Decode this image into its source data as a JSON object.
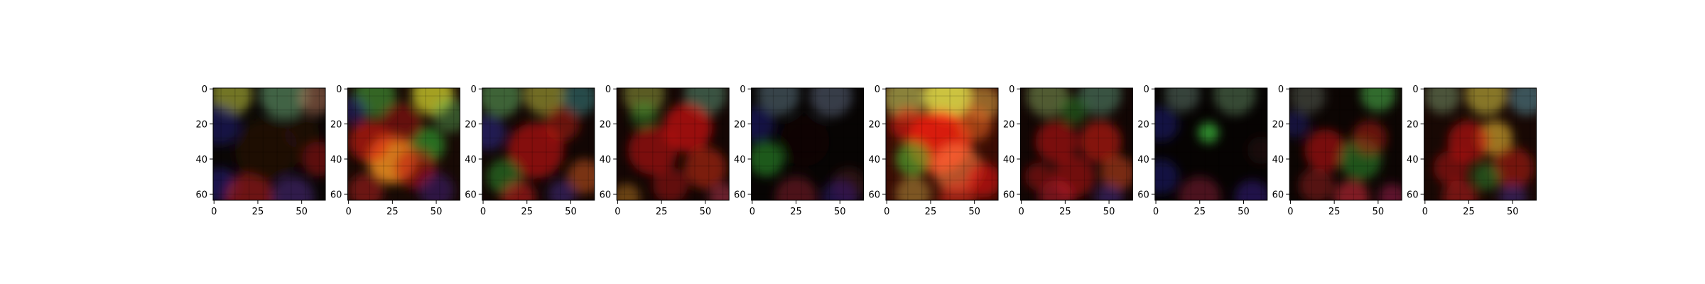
{
  "chart_data": {
    "type": "heatmap",
    "description_kind": "grid of 10 image subplots (generated RGB images)",
    "panel_count": 10,
    "image_size": [
      64,
      64
    ],
    "x_ticks": [
      0,
      25,
      50
    ],
    "y_ticks": [
      0,
      20,
      40,
      60
    ],
    "xlim": [
      -0.5,
      63.5
    ],
    "ylim": [
      63.5,
      -0.5
    ],
    "title": "",
    "xlabel": "",
    "ylabel": "",
    "grid": false,
    "panels": [
      {
        "base": "#0a0605",
        "blobs": [
          {
            "x": 10,
            "y": 3,
            "r": 12,
            "color": "#c8d040",
            "a": 0.55
          },
          {
            "x": 40,
            "y": 3,
            "r": 14,
            "color": "#6fae7a",
            "a": 0.55
          },
          {
            "x": 58,
            "y": 5,
            "r": 10,
            "color": "#c08060",
            "a": 0.5
          },
          {
            "x": 3,
            "y": 20,
            "r": 12,
            "color": "#202090",
            "a": 0.45
          },
          {
            "x": 3,
            "y": 55,
            "r": 10,
            "color": "#2a20a0",
            "a": 0.45
          },
          {
            "x": 60,
            "y": 40,
            "r": 10,
            "color": "#c01010",
            "a": 0.45
          },
          {
            "x": 20,
            "y": 62,
            "r": 14,
            "color": "#c02020",
            "a": 0.55
          },
          {
            "x": 45,
            "y": 62,
            "r": 12,
            "color": "#6030a0",
            "a": 0.45
          },
          {
            "x": 30,
            "y": 35,
            "r": 18,
            "color": "#301008",
            "a": 0.5
          },
          {
            "x": 50,
            "y": 25,
            "r": 10,
            "color": "#3a1a10",
            "a": 0.4
          }
        ]
      },
      {
        "base": "#180a05",
        "blobs": [
          {
            "x": 48,
            "y": 3,
            "r": 12,
            "color": "#e0e030",
            "a": 0.7
          },
          {
            "x": 15,
            "y": 4,
            "r": 12,
            "color": "#50c040",
            "a": 0.5
          },
          {
            "x": 25,
            "y": 40,
            "r": 14,
            "color": "#ff9a20",
            "a": 0.8
          },
          {
            "x": 12,
            "y": 30,
            "r": 12,
            "color": "#e02010",
            "a": 0.6
          },
          {
            "x": 45,
            "y": 32,
            "r": 10,
            "color": "#30b030",
            "a": 0.6
          },
          {
            "x": 38,
            "y": 45,
            "r": 12,
            "color": "#c01010",
            "a": 0.55
          },
          {
            "x": 30,
            "y": 20,
            "r": 12,
            "color": "#b01010",
            "a": 0.5
          },
          {
            "x": 58,
            "y": 15,
            "r": 10,
            "color": "#60c060",
            "a": 0.4
          },
          {
            "x": 10,
            "y": 58,
            "r": 10,
            "color": "#c02020",
            "a": 0.5
          },
          {
            "x": 50,
            "y": 58,
            "r": 10,
            "color": "#5020a0",
            "a": 0.4
          },
          {
            "x": 3,
            "y": 12,
            "r": 8,
            "color": "#2020a0",
            "a": 0.4
          }
        ]
      },
      {
        "base": "#120604",
        "blobs": [
          {
            "x": 10,
            "y": 4,
            "r": 12,
            "color": "#60b060",
            "a": 0.55
          },
          {
            "x": 35,
            "y": 3,
            "r": 12,
            "color": "#c0c040",
            "a": 0.55
          },
          {
            "x": 55,
            "y": 5,
            "r": 10,
            "color": "#40a0a0",
            "a": 0.45
          },
          {
            "x": 30,
            "y": 35,
            "r": 16,
            "color": "#d01010",
            "a": 0.6
          },
          {
            "x": 45,
            "y": 20,
            "r": 10,
            "color": "#c02010",
            "a": 0.5
          },
          {
            "x": 12,
            "y": 50,
            "r": 10,
            "color": "#30a030",
            "a": 0.5
          },
          {
            "x": 58,
            "y": 50,
            "r": 10,
            "color": "#e06020",
            "a": 0.5
          },
          {
            "x": 20,
            "y": 62,
            "r": 10,
            "color": "#d02020",
            "a": 0.55
          },
          {
            "x": 3,
            "y": 25,
            "r": 10,
            "color": "#3030b0",
            "a": 0.45
          },
          {
            "x": 45,
            "y": 60,
            "r": 8,
            "color": "#5030a0",
            "a": 0.45
          }
        ]
      },
      {
        "base": "#140604",
        "blobs": [
          {
            "x": 15,
            "y": 3,
            "r": 12,
            "color": "#a0b040",
            "a": 0.5
          },
          {
            "x": 50,
            "y": 3,
            "r": 12,
            "color": "#60a080",
            "a": 0.5
          },
          {
            "x": 40,
            "y": 22,
            "r": 14,
            "color": "#e01010",
            "a": 0.65
          },
          {
            "x": 20,
            "y": 35,
            "r": 14,
            "color": "#c01010",
            "a": 0.6
          },
          {
            "x": 50,
            "y": 45,
            "r": 12,
            "color": "#d03010",
            "a": 0.55
          },
          {
            "x": 15,
            "y": 15,
            "r": 8,
            "color": "#30a030",
            "a": 0.4
          },
          {
            "x": 30,
            "y": 55,
            "r": 10,
            "color": "#b01010",
            "a": 0.5
          },
          {
            "x": 5,
            "y": 62,
            "r": 8,
            "color": "#c08020",
            "a": 0.5
          },
          {
            "x": 60,
            "y": 62,
            "r": 8,
            "color": "#d04060",
            "a": 0.45
          }
        ]
      },
      {
        "base": "#070403",
        "blobs": [
          {
            "x": 15,
            "y": 3,
            "r": 12,
            "color": "#7090a0",
            "a": 0.45
          },
          {
            "x": 45,
            "y": 4,
            "r": 12,
            "color": "#8090b0",
            "a": 0.4
          },
          {
            "x": 8,
            "y": 40,
            "r": 10,
            "color": "#30a030",
            "a": 0.55
          },
          {
            "x": 3,
            "y": 20,
            "r": 10,
            "color": "#202090",
            "a": 0.45
          },
          {
            "x": 55,
            "y": 55,
            "r": 10,
            "color": "#602020",
            "a": 0.4
          },
          {
            "x": 25,
            "y": 62,
            "r": 12,
            "color": "#a02030",
            "a": 0.45
          },
          {
            "x": 50,
            "y": 62,
            "r": 10,
            "color": "#4020a0",
            "a": 0.4
          },
          {
            "x": 30,
            "y": 30,
            "r": 14,
            "color": "#1a0a05",
            "a": 0.4
          }
        ]
      },
      {
        "base": "#3a0c04",
        "blobs": [
          {
            "x": 35,
            "y": 4,
            "r": 14,
            "color": "#f0f050",
            "a": 0.8
          },
          {
            "x": 10,
            "y": 5,
            "r": 12,
            "color": "#c0d060",
            "a": 0.6
          },
          {
            "x": 55,
            "y": 8,
            "r": 10,
            "color": "#d0a040",
            "a": 0.6
          },
          {
            "x": 30,
            "y": 30,
            "r": 18,
            "color": "#ff2010",
            "a": 0.8
          },
          {
            "x": 15,
            "y": 40,
            "r": 10,
            "color": "#50c030",
            "a": 0.6
          },
          {
            "x": 40,
            "y": 45,
            "r": 14,
            "color": "#ff8040",
            "a": 0.6
          },
          {
            "x": 50,
            "y": 20,
            "r": 10,
            "color": "#e06020",
            "a": 0.6
          },
          {
            "x": 12,
            "y": 20,
            "r": 10,
            "color": "#e02010",
            "a": 0.6
          },
          {
            "x": 55,
            "y": 52,
            "r": 10,
            "color": "#e01010",
            "a": 0.6
          },
          {
            "x": 15,
            "y": 60,
            "r": 10,
            "color": "#c0a040",
            "a": 0.5
          },
          {
            "x": 40,
            "y": 62,
            "r": 10,
            "color": "#e03020",
            "a": 0.55
          }
        ]
      },
      {
        "base": "#120604",
        "blobs": [
          {
            "x": 15,
            "y": 4,
            "r": 12,
            "color": "#90b060",
            "a": 0.5
          },
          {
            "x": 45,
            "y": 3,
            "r": 12,
            "color": "#60a080",
            "a": 0.5
          },
          {
            "x": 20,
            "y": 30,
            "r": 12,
            "color": "#c01010",
            "a": 0.6
          },
          {
            "x": 45,
            "y": 30,
            "r": 12,
            "color": "#d02010",
            "a": 0.6
          },
          {
            "x": 30,
            "y": 50,
            "r": 12,
            "color": "#c01010",
            "a": 0.55
          },
          {
            "x": 55,
            "y": 48,
            "r": 10,
            "color": "#e05020",
            "a": 0.5
          },
          {
            "x": 10,
            "y": 50,
            "r": 8,
            "color": "#b01010",
            "a": 0.5
          },
          {
            "x": 30,
            "y": 12,
            "r": 8,
            "color": "#30a030",
            "a": 0.4
          },
          {
            "x": 20,
            "y": 62,
            "r": 10,
            "color": "#d02030",
            "a": 0.5
          },
          {
            "x": 50,
            "y": 62,
            "r": 8,
            "color": "#5030a0",
            "a": 0.45
          }
        ]
      },
      {
        "base": "#060302",
        "blobs": [
          {
            "x": 15,
            "y": 3,
            "r": 10,
            "color": "#709080",
            "a": 0.45
          },
          {
            "x": 45,
            "y": 3,
            "r": 12,
            "color": "#70a070",
            "a": 0.45
          },
          {
            "x": 30,
            "y": 25,
            "r": 6,
            "color": "#40c040",
            "a": 0.7
          },
          {
            "x": 3,
            "y": 20,
            "r": 10,
            "color": "#202090",
            "a": 0.45
          },
          {
            "x": 3,
            "y": 50,
            "r": 10,
            "color": "#2020a0",
            "a": 0.4
          },
          {
            "x": 25,
            "y": 62,
            "r": 12,
            "color": "#a02040",
            "a": 0.45
          },
          {
            "x": 55,
            "y": 62,
            "r": 10,
            "color": "#4020a0",
            "a": 0.45
          },
          {
            "x": 60,
            "y": 35,
            "r": 8,
            "color": "#401010",
            "a": 0.35
          }
        ]
      },
      {
        "base": "#0c0503",
        "blobs": [
          {
            "x": 50,
            "y": 3,
            "r": 10,
            "color": "#50c050",
            "a": 0.55
          },
          {
            "x": 10,
            "y": 4,
            "r": 10,
            "color": "#708070",
            "a": 0.4
          },
          {
            "x": 20,
            "y": 35,
            "r": 12,
            "color": "#c01010",
            "a": 0.6
          },
          {
            "x": 40,
            "y": 40,
            "r": 12,
            "color": "#30a030",
            "a": 0.5
          },
          {
            "x": 45,
            "y": 28,
            "r": 10,
            "color": "#c02010",
            "a": 0.5
          },
          {
            "x": 15,
            "y": 55,
            "r": 10,
            "color": "#b02020",
            "a": 0.45
          },
          {
            "x": 35,
            "y": 62,
            "r": 10,
            "color": "#e03040",
            "a": 0.55
          },
          {
            "x": 58,
            "y": 62,
            "r": 8,
            "color": "#c02060",
            "a": 0.45
          },
          {
            "x": 3,
            "y": 20,
            "r": 8,
            "color": "#202090",
            "a": 0.4
          }
        ]
      },
      {
        "base": "#180804",
        "blobs": [
          {
            "x": 35,
            "y": 3,
            "r": 12,
            "color": "#d0c040",
            "a": 0.6
          },
          {
            "x": 10,
            "y": 4,
            "r": 10,
            "color": "#80a070",
            "a": 0.5
          },
          {
            "x": 58,
            "y": 5,
            "r": 10,
            "color": "#60a0b0",
            "a": 0.5
          },
          {
            "x": 40,
            "y": 28,
            "r": 10,
            "color": "#e0b030",
            "a": 0.65
          },
          {
            "x": 25,
            "y": 30,
            "r": 12,
            "color": "#d01010",
            "a": 0.6
          },
          {
            "x": 50,
            "y": 45,
            "r": 12,
            "color": "#c02010",
            "a": 0.55
          },
          {
            "x": 15,
            "y": 45,
            "r": 10,
            "color": "#c01010",
            "a": 0.5
          },
          {
            "x": 35,
            "y": 50,
            "r": 8,
            "color": "#30a030",
            "a": 0.45
          },
          {
            "x": 20,
            "y": 62,
            "r": 10,
            "color": "#d02020",
            "a": 0.5
          },
          {
            "x": 50,
            "y": 62,
            "r": 8,
            "color": "#5030a0",
            "a": 0.45
          }
        ]
      }
    ]
  }
}
